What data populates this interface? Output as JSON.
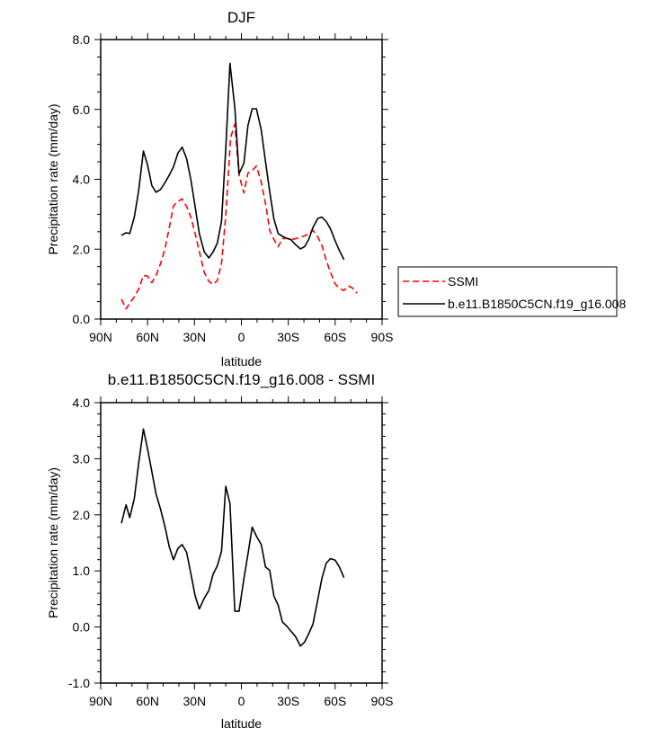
{
  "chart_data": [
    {
      "type": "line",
      "title": "DJF",
      "xlabel": "latitude",
      "ylabel": "Precipitation rate (mm/day)",
      "xlim": [
        90,
        -90
      ],
      "ylim": [
        0,
        8
      ],
      "xticks": [
        90,
        60,
        30,
        0,
        -30,
        -60,
        -90
      ],
      "xtick_labels": [
        "90N",
        "60N",
        "30N",
        "0",
        "30S",
        "60S",
        "90S"
      ],
      "yticks": [
        0,
        2,
        4,
        6,
        8
      ],
      "ytick_labels": [
        "0.0",
        "2.0",
        "4.0",
        "6.0",
        "8.0"
      ],
      "grid": false,
      "legend_placement": "right",
      "series": [
        {
          "name": "SSMI",
          "color": "#ff0000",
          "dash": "dashed",
          "x": [
            76.7,
            73.8,
            71,
            68.2,
            65.6,
            62.7,
            60,
            57.3,
            54.6,
            51.7,
            48.8,
            46.1,
            43.4,
            40.6,
            37.9,
            35,
            32.3,
            29.6,
            26.9,
            23.8,
            20.8,
            18.1,
            15.4,
            12.7,
            10,
            6.9,
            4.2,
            1.5,
            -1.6,
            -4.2,
            -6.9,
            -9.6,
            -12.7,
            -15.4,
            -18.1,
            -20.8,
            -23.5,
            -26.2,
            -28.9,
            -31.6,
            -34.6,
            -37.7,
            -40.4,
            -43.1,
            -45.8,
            -48.9,
            -51.5,
            -54.3,
            -57,
            -60,
            -62.7,
            -65.6,
            -68.3,
            -71,
            -74
          ],
          "y": [
            0.57,
            0.29,
            0.48,
            0.65,
            0.87,
            1.25,
            1.23,
            1.04,
            1.25,
            1.59,
            2.02,
            2.62,
            3.24,
            3.37,
            3.44,
            3.22,
            2.92,
            2.45,
            1.94,
            1.34,
            1.08,
            0.99,
            1.1,
            1.59,
            2.96,
            5.19,
            5.58,
            4.12,
            3.61,
            4.18,
            4.25,
            4.38,
            3.91,
            3.31,
            2.54,
            2.28,
            2.07,
            2.3,
            2.31,
            2.28,
            2.3,
            2.35,
            2.38,
            2.45,
            2.54,
            2.35,
            2.11,
            1.68,
            1.34,
            1.01,
            0.87,
            0.82,
            0.95,
            0.89,
            0.74
          ]
        },
        {
          "name": "b.e11.B1850C5CN.f19_g16.008",
          "color": "#000000",
          "dash": "solid",
          "x": [
            76.7,
            73.8,
            71.4,
            68.5,
            65.8,
            62.7,
            60,
            57.3,
            54.6,
            51.7,
            48.8,
            46.1,
            43.4,
            40.6,
            37.9,
            35,
            32.3,
            29.6,
            26.9,
            23.8,
            20.8,
            18.1,
            15.4,
            12.7,
            10,
            7.3,
            4.2,
            1.5,
            -1.6,
            -4.2,
            -6.9,
            -9.6,
            -12.7,
            -15.4,
            -18.1,
            -20.8,
            -23.5,
            -26.2,
            -28.9,
            -31.6,
            -34.6,
            -37.7,
            -40.4,
            -43.1,
            -45.8,
            -48.9,
            -51.5,
            -54.3,
            -57,
            -60,
            -62.7,
            -65.6
          ],
          "y": [
            2.4,
            2.47,
            2.45,
            2.92,
            3.65,
            4.81,
            4.4,
            3.82,
            3.63,
            3.71,
            3.91,
            4.12,
            4.36,
            4.75,
            4.92,
            4.59,
            3.99,
            3.22,
            2.45,
            1.93,
            1.75,
            1.92,
            2.17,
            2.8,
            4.86,
            7.32,
            6.05,
            4.16,
            4.46,
            5.54,
            6.02,
            6.02,
            5.41,
            4.51,
            3.65,
            2.86,
            2.45,
            2.37,
            2.31,
            2.28,
            2.13,
            2.01,
            2.07,
            2.28,
            2.62,
            2.88,
            2.92,
            2.79,
            2.58,
            2.24,
            1.96,
            1.7
          ]
        }
      ]
    },
    {
      "type": "line",
      "title": "b.e11.B1850C5CN.f19_g16.008 - SSMI",
      "xlabel": "latitude",
      "ylabel": "Precipitation rate (mm/day)",
      "xlim": [
        90,
        -90
      ],
      "ylim": [
        -1,
        4
      ],
      "xticks": [
        90,
        60,
        30,
        0,
        -30,
        -60,
        -90
      ],
      "xtick_labels": [
        "90N",
        "60N",
        "30N",
        "0",
        "30S",
        "60S",
        "90S"
      ],
      "yticks": [
        -1,
        0,
        1,
        2,
        3,
        4
      ],
      "ytick_labels": [
        "-1.0",
        "0.0",
        "1.0",
        "2.0",
        "3.0",
        "4.0"
      ],
      "grid": false,
      "series": [
        {
          "color": "#000000",
          "dash": "solid",
          "x": [
            76.7,
            73.8,
            71.4,
            68.5,
            65.8,
            62.7,
            60,
            57.3,
            54.6,
            51.7,
            48.8,
            46.1,
            43.4,
            40.6,
            37.9,
            35,
            32.3,
            29.6,
            26.9,
            23.8,
            20.8,
            18.1,
            15.4,
            12.7,
            10,
            7.3,
            4.2,
            1.5,
            -1.6,
            -4.2,
            -6.9,
            -9.6,
            -12.7,
            -15.4,
            -18.1,
            -20.8,
            -23.5,
            -26.2,
            -28.9,
            -31.6,
            -34.6,
            -37.7,
            -40.4,
            -43.1,
            -45.8,
            -48.9,
            -51.5,
            -54.3,
            -57,
            -60,
            -62.7,
            -65.6
          ],
          "y": [
            1.85,
            2.18,
            1.95,
            2.29,
            2.9,
            3.53,
            3.17,
            2.77,
            2.37,
            2.1,
            1.78,
            1.43,
            1.2,
            1.4,
            1.47,
            1.33,
            0.95,
            0.56,
            0.32,
            0.51,
            0.65,
            0.94,
            1.09,
            1.35,
            2.51,
            2.2,
            0.28,
            0.28,
            0.86,
            1.3,
            1.78,
            1.62,
            1.47,
            1.07,
            1.01,
            0.55,
            0.39,
            0.09,
            0.02,
            -0.07,
            -0.17,
            -0.34,
            -0.27,
            -0.12,
            0.05,
            0.49,
            0.87,
            1.14,
            1.22,
            1.19,
            1.07,
            0.88
          ]
        }
      ]
    }
  ]
}
